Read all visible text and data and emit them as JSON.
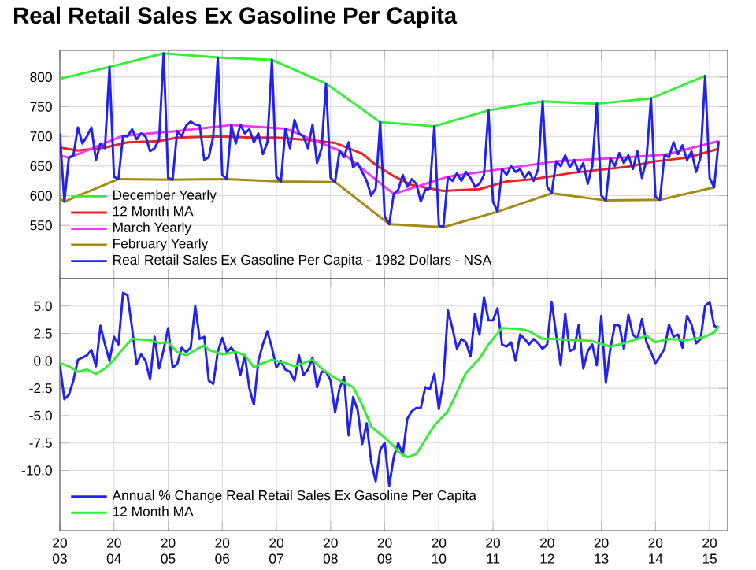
{
  "chart_data": [
    {
      "type": "line",
      "title": "Real Retail Sales Ex Gasoline Per Capita",
      "x": [
        "2003-01",
        "2003-02",
        "2003-03",
        "2003-04",
        "2003-05",
        "2003-06",
        "2003-07",
        "2003-08",
        "2003-09",
        "2003-10",
        "2003-11",
        "2003-12",
        "2004-01",
        "2004-02",
        "2004-03",
        "2004-04",
        "2004-05",
        "2004-06",
        "2004-07",
        "2004-08",
        "2004-09",
        "2004-10",
        "2004-11",
        "2004-12",
        "2005-01",
        "2005-02",
        "2005-03",
        "2005-04",
        "2005-05",
        "2005-06",
        "2005-07",
        "2005-08",
        "2005-09",
        "2005-10",
        "2005-11",
        "2005-12",
        "2006-01",
        "2006-02",
        "2006-03",
        "2006-04",
        "2006-05",
        "2006-06",
        "2006-07",
        "2006-08",
        "2006-09",
        "2006-10",
        "2006-11",
        "2006-12",
        "2007-01",
        "2007-02",
        "2007-03",
        "2007-04",
        "2007-05",
        "2007-06",
        "2007-07",
        "2007-08",
        "2007-09",
        "2007-10",
        "2007-11",
        "2007-12",
        "2008-01",
        "2008-02",
        "2008-03",
        "2008-04",
        "2008-05",
        "2008-06",
        "2008-07",
        "2008-08",
        "2008-09",
        "2008-10",
        "2008-11",
        "2008-12",
        "2009-01",
        "2009-02",
        "2009-03",
        "2009-04",
        "2009-05",
        "2009-06",
        "2009-07",
        "2009-08",
        "2009-09",
        "2009-10",
        "2009-11",
        "2009-12",
        "2010-01",
        "2010-02",
        "2010-03",
        "2010-04",
        "2010-05",
        "2010-06",
        "2010-07",
        "2010-08",
        "2010-09",
        "2010-10",
        "2010-11",
        "2010-12",
        "2011-01",
        "2011-02",
        "2011-03",
        "2011-04",
        "2011-05",
        "2011-06",
        "2011-07",
        "2011-08",
        "2011-09",
        "2011-10",
        "2011-11",
        "2011-12",
        "2012-01",
        "2012-02",
        "2012-03",
        "2012-04",
        "2012-05",
        "2012-06",
        "2012-07",
        "2012-08",
        "2012-09",
        "2012-10",
        "2012-11",
        "2012-12",
        "2013-01",
        "2013-02",
        "2013-03",
        "2013-04",
        "2013-05",
        "2013-06",
        "2013-07",
        "2013-08",
        "2013-09",
        "2013-10",
        "2013-11",
        "2013-12",
        "2014-01",
        "2014-02",
        "2014-03",
        "2014-04",
        "2014-05",
        "2014-06",
        "2014-07",
        "2014-08",
        "2014-09",
        "2014-10",
        "2014-11",
        "2014-12",
        "2015-01",
        "2015-02",
        "2015-03"
      ],
      "xlim": [
        "2003-01",
        "2015-05"
      ],
      "xticks": [
        {
          "value": "2003-01",
          "label": null
        },
        {
          "value": "2004-01",
          "label": null
        },
        {
          "value": "2005-01",
          "label": null
        },
        {
          "value": "2006-01",
          "label": null
        },
        {
          "value": "2007-01",
          "label": null
        },
        {
          "value": "2008-01",
          "label": null
        },
        {
          "value": "2009-01",
          "label": null
        },
        {
          "value": "2010-01",
          "label": null
        },
        {
          "value": "2011-01",
          "label": null
        },
        {
          "value": "2012-01",
          "label": null
        },
        {
          "value": "2013-01",
          "label": null
        },
        {
          "value": "2014-01",
          "label": null
        },
        {
          "value": "2015-01",
          "label": null
        }
      ],
      "ylim": [
        460,
        845
      ],
      "yticks": [
        550,
        600,
        650,
        700,
        750,
        800
      ],
      "grid": true,
      "legend": "bottom left",
      "tick_labels": "y",
      "series": [
        {
          "name": "December Yearly",
          "color": "#33ee33",
          "x": [
            "2003-01",
            "2003-12",
            "2004-12",
            "2005-12",
            "2006-12",
            "2007-12",
            "2008-12",
            "2009-12",
            "2010-12",
            "2011-12",
            "2012-12",
            "2013-12",
            "2014-12"
          ],
          "values": [
            797,
            817,
            840,
            833,
            829,
            789,
            724,
            717,
            744,
            759,
            755,
            764,
            802
          ]
        },
        {
          "name": "12 Month MA",
          "color": "#ee2222",
          "x": [
            "2003-01",
            "2003-05",
            "2003-11",
            "2004-04",
            "2004-11",
            "2005-03",
            "2005-12",
            "2006-08",
            "2007-01",
            "2007-08",
            "2008-02",
            "2008-08",
            "2008-11",
            "2009-03",
            "2009-07",
            "2010-02",
            "2010-10",
            "2011-04",
            "2011-10",
            "2012-07",
            "2012-12",
            "2013-07",
            "2014-01",
            "2014-08",
            "2015-03"
          ],
          "values": [
            681,
            676,
            681,
            690,
            692,
            698,
            700,
            698,
            698,
            694,
            689,
            671,
            652,
            633,
            618,
            608,
            611,
            624,
            628,
            639,
            643,
            649,
            658,
            664,
            679
          ]
        },
        {
          "name": "March Yearly",
          "color": "#ff33ff",
          "x": [
            "2003-01",
            "2003-03",
            "2004-03",
            "2005-03",
            "2006-03",
            "2007-03",
            "2008-03",
            "2009-03",
            "2010-03",
            "2011-03",
            "2012-03",
            "2013-03",
            "2014-03",
            "2015-03"
          ],
          "values": [
            668,
            664,
            701,
            709,
            719,
            713,
            676,
            603,
            632,
            645,
            658,
            663,
            669,
            692
          ]
        },
        {
          "name": "February Yearly",
          "color": "#a08c14",
          "x": [
            "2003-01",
            "2003-02",
            "2004-02",
            "2005-02",
            "2006-02",
            "2007-02",
            "2008-02",
            "2009-02",
            "2010-02",
            "2011-02",
            "2012-02",
            "2013-02",
            "2014-02",
            "2015-02"
          ],
          "values": [
            595,
            590,
            628,
            627,
            628,
            624,
            623,
            552,
            547,
            573,
            604,
            592,
            593,
            614
          ]
        },
        {
          "name": "Real Retail Sales Ex Gasoline Per Capita - 1982 Dollars - NSA",
          "color": "#2222ee",
          "values": [
            705,
            590,
            664,
            668,
            715,
            688,
            700,
            715,
            660,
            688,
            680,
            817,
            632,
            628,
            701,
            700,
            712,
            695,
            705,
            700,
            675,
            680,
            695,
            840,
            630,
            627,
            709,
            700,
            718,
            725,
            720,
            718,
            660,
            665,
            700,
            833,
            635,
            628,
            719,
            688,
            720,
            705,
            712,
            690,
            705,
            670,
            690,
            829,
            632,
            624,
            713,
            680,
            728,
            705,
            700,
            680,
            720,
            655,
            680,
            789,
            630,
            623,
            676,
            665,
            690,
            648,
            655,
            640,
            625,
            600,
            612,
            724,
            565,
            552,
            603,
            610,
            635,
            615,
            628,
            620,
            590,
            610,
            612,
            717,
            550,
            547,
            632,
            625,
            638,
            625,
            640,
            630,
            615,
            620,
            635,
            744,
            590,
            573,
            645,
            635,
            650,
            640,
            645,
            630,
            640,
            625,
            645,
            759,
            615,
            604,
            658,
            650,
            668,
            648,
            660,
            640,
            655,
            620,
            650,
            755,
            600,
            592,
            663,
            650,
            672,
            655,
            668,
            645,
            675,
            630,
            660,
            764,
            598,
            593,
            669,
            665,
            690,
            670,
            685,
            660,
            675,
            640,
            665,
            802,
            630,
            614,
            692
          ]
        }
      ]
    },
    {
      "type": "line",
      "x": [
        "2003-01",
        "2003-02",
        "2003-03",
        "2003-04",
        "2003-05",
        "2003-06",
        "2003-07",
        "2003-08",
        "2003-09",
        "2003-10",
        "2003-11",
        "2003-12",
        "2004-01",
        "2004-02",
        "2004-03",
        "2004-04",
        "2004-05",
        "2004-06",
        "2004-07",
        "2004-08",
        "2004-09",
        "2004-10",
        "2004-11",
        "2004-12",
        "2005-01",
        "2005-02",
        "2005-03",
        "2005-04",
        "2005-05",
        "2005-06",
        "2005-07",
        "2005-08",
        "2005-09",
        "2005-10",
        "2005-11",
        "2005-12",
        "2006-01",
        "2006-02",
        "2006-03",
        "2006-04",
        "2006-05",
        "2006-06",
        "2006-07",
        "2006-08",
        "2006-09",
        "2006-10",
        "2006-11",
        "2006-12",
        "2007-01",
        "2007-02",
        "2007-03",
        "2007-04",
        "2007-05",
        "2007-06",
        "2007-07",
        "2007-08",
        "2007-09",
        "2007-10",
        "2007-11",
        "2007-12",
        "2008-01",
        "2008-02",
        "2008-03",
        "2008-04",
        "2008-05",
        "2008-06",
        "2008-07",
        "2008-08",
        "2008-09",
        "2008-10",
        "2008-11",
        "2008-12",
        "2009-01",
        "2009-02",
        "2009-03",
        "2009-04",
        "2009-05",
        "2009-06",
        "2009-07",
        "2009-08",
        "2009-09",
        "2009-10",
        "2009-11",
        "2009-12",
        "2010-01",
        "2010-02",
        "2010-03",
        "2010-04",
        "2010-05",
        "2010-06",
        "2010-07",
        "2010-08",
        "2010-09",
        "2010-10",
        "2010-11",
        "2010-12",
        "2011-01",
        "2011-02",
        "2011-03",
        "2011-04",
        "2011-05",
        "2011-06",
        "2011-07",
        "2011-08",
        "2011-09",
        "2011-10",
        "2011-11",
        "2011-12",
        "2012-01",
        "2012-02",
        "2012-03",
        "2012-04",
        "2012-05",
        "2012-06",
        "2012-07",
        "2012-08",
        "2012-09",
        "2012-10",
        "2012-11",
        "2012-12",
        "2013-01",
        "2013-02",
        "2013-03",
        "2013-04",
        "2013-05",
        "2013-06",
        "2013-07",
        "2013-08",
        "2013-09",
        "2013-10",
        "2013-11",
        "2013-12",
        "2014-01",
        "2014-02",
        "2014-03",
        "2014-04",
        "2014-05",
        "2014-06",
        "2014-07",
        "2014-08",
        "2014-09",
        "2014-10",
        "2014-11",
        "2014-12",
        "2015-01",
        "2015-02",
        "2015-03"
      ],
      "xlim": [
        "2003-01",
        "2015-05"
      ],
      "xticks": [
        {
          "value": "2003-01",
          "label": "20 03"
        },
        {
          "value": "2004-01",
          "label": "20 04"
        },
        {
          "value": "2005-01",
          "label": "20 05"
        },
        {
          "value": "2006-01",
          "label": "20 06"
        },
        {
          "value": "2007-01",
          "label": "20 07"
        },
        {
          "value": "2008-01",
          "label": "20 08"
        },
        {
          "value": "2009-01",
          "label": "20 09"
        },
        {
          "value": "2010-01",
          "label": "20 10"
        },
        {
          "value": "2011-01",
          "label": "20 11"
        },
        {
          "value": "2012-01",
          "label": "20 12"
        },
        {
          "value": "2013-01",
          "label": "20 13"
        },
        {
          "value": "2014-01",
          "label": "20 14"
        },
        {
          "value": "2015-01",
          "label": "20 15"
        }
      ],
      "ylim": [
        -15.5,
        7.5
      ],
      "yticks": [
        {
          "value": -10,
          "label": "-10.0"
        },
        {
          "value": -7.5,
          "label": "-7.5"
        },
        {
          "value": -5,
          "label": "-5.0"
        },
        {
          "value": -2.5,
          "label": "-2.5"
        },
        {
          "value": 0,
          "label": "0.0"
        },
        {
          "value": 2.5,
          "label": "2.5"
        },
        {
          "value": 5,
          "label": "5.0"
        }
      ],
      "grid": true,
      "legend": "bottom left",
      "series": [
        {
          "name": "Annual % Change Real Retail Sales Ex Gasoline Per Capita",
          "color": "#2222ee",
          "values": [
            -0.3,
            -3.5,
            -3.1,
            -1.8,
            0.1,
            0.3,
            0.5,
            1.0,
            -0.5,
            3.2,
            1.5,
            0.0,
            2.2,
            1.5,
            6.2,
            6.0,
            3.0,
            -0.3,
            0.6,
            0.0,
            -1.7,
            2.2,
            -0.7,
            1.0,
            3.0,
            -0.6,
            -0.3,
            1.2,
            0.8,
            1.2,
            5.0,
            2.0,
            2.2,
            -1.8,
            -2.1,
            0.8,
            2.1,
            0.8,
            1.2,
            0.6,
            -1.3,
            0.5,
            -2.5,
            -4.0,
            0.0,
            1.5,
            2.7,
            1.2,
            -0.6,
            0.0,
            -0.8,
            -1.0,
            -1.8,
            0.5,
            -1.3,
            -0.8,
            0.3,
            -2.4,
            -1.0,
            -1.0,
            -1.8,
            -4.7,
            -2.5,
            -1.5,
            -6.8,
            -3.3,
            -4.5,
            -7.6,
            -5.7,
            -9.2,
            -11.0,
            -8.1,
            -7.5,
            -11.4,
            -8.8,
            -7.5,
            -8.6,
            -5.3,
            -4.6,
            -4.3,
            -4.3,
            -2.4,
            -2.6,
            -1.2,
            -4.4,
            -1.8,
            4.6,
            3.0,
            1.1,
            2.0,
            1.7,
            0.4,
            4.3,
            2.4,
            5.8,
            3.7,
            3.7,
            4.8,
            1.5,
            1.3,
            1.7,
            0.0,
            2.4,
            2.0,
            1.5,
            2.0,
            1.6,
            1.1,
            1.5,
            5.4,
            2.4,
            -0.4,
            4.3,
            0.9,
            1.1,
            3.3,
            -0.7,
            0.9,
            1.5,
            -0.4,
            4.1,
            -2.0,
            1.1,
            3.3,
            3.2,
            1.1,
            4.2,
            2.4,
            2.0,
            3.8,
            1.7,
            0.8,
            -0.2,
            0.4,
            1.1,
            3.3,
            2.2,
            2.4,
            1.2,
            4.1,
            3.3,
            1.6,
            2.0,
            5.0,
            5.4,
            3.2,
            3.0
          ]
        },
        {
          "name": "12 Month MA",
          "color": "#33ee33",
          "x": [
            "2003-01",
            "2003-03",
            "2003-05",
            "2003-07",
            "2003-09",
            "2003-11",
            "2004-01",
            "2004-03",
            "2004-05",
            "2004-09",
            "2004-11",
            "2005-01",
            "2005-03",
            "2005-05",
            "2005-07",
            "2005-09",
            "2005-10",
            "2006-01",
            "2006-04",
            "2006-06",
            "2006-08",
            "2006-10",
            "2006-12",
            "2007-03",
            "2007-05",
            "2007-07",
            "2007-09",
            "2007-11",
            "2008-01",
            "2008-03",
            "2008-06",
            "2008-08",
            "2008-10",
            "2009-01",
            "2009-03",
            "2009-04",
            "2009-06",
            "2009-08",
            "2009-10",
            "2009-12",
            "2010-03",
            "2010-05",
            "2010-07",
            "2010-10",
            "2010-12",
            "2011-03",
            "2011-07",
            "2011-09",
            "2011-12",
            "2012-02",
            "2012-07",
            "2012-11",
            "2013-03",
            "2013-06",
            "2013-11",
            "2014-01",
            "2014-04",
            "2014-08",
            "2014-12",
            "2015-02",
            "2015-03"
          ],
          "values": [
            -0.2,
            -0.5,
            -1.0,
            -0.8,
            -1.2,
            -0.7,
            0.1,
            1.1,
            2.0,
            1.9,
            1.6,
            1.7,
            0.8,
            0.5,
            1.0,
            1.4,
            1.0,
            0.6,
            0.8,
            0.5,
            -0.6,
            -0.2,
            0.1,
            -0.2,
            -0.5,
            -0.2,
            0.1,
            -0.7,
            -1.3,
            -1.8,
            -2.4,
            -4.0,
            -6.0,
            -7.0,
            -7.8,
            -8.3,
            -8.8,
            -8.5,
            -7.2,
            -5.9,
            -4.6,
            -2.9,
            -1.1,
            0.2,
            1.5,
            3.0,
            2.9,
            2.7,
            2.0,
            2.0,
            1.9,
            1.8,
            1.3,
            1.6,
            2.3,
            1.7,
            2.0,
            1.9,
            2.2,
            2.6,
            3.2
          ]
        }
      ]
    }
  ]
}
